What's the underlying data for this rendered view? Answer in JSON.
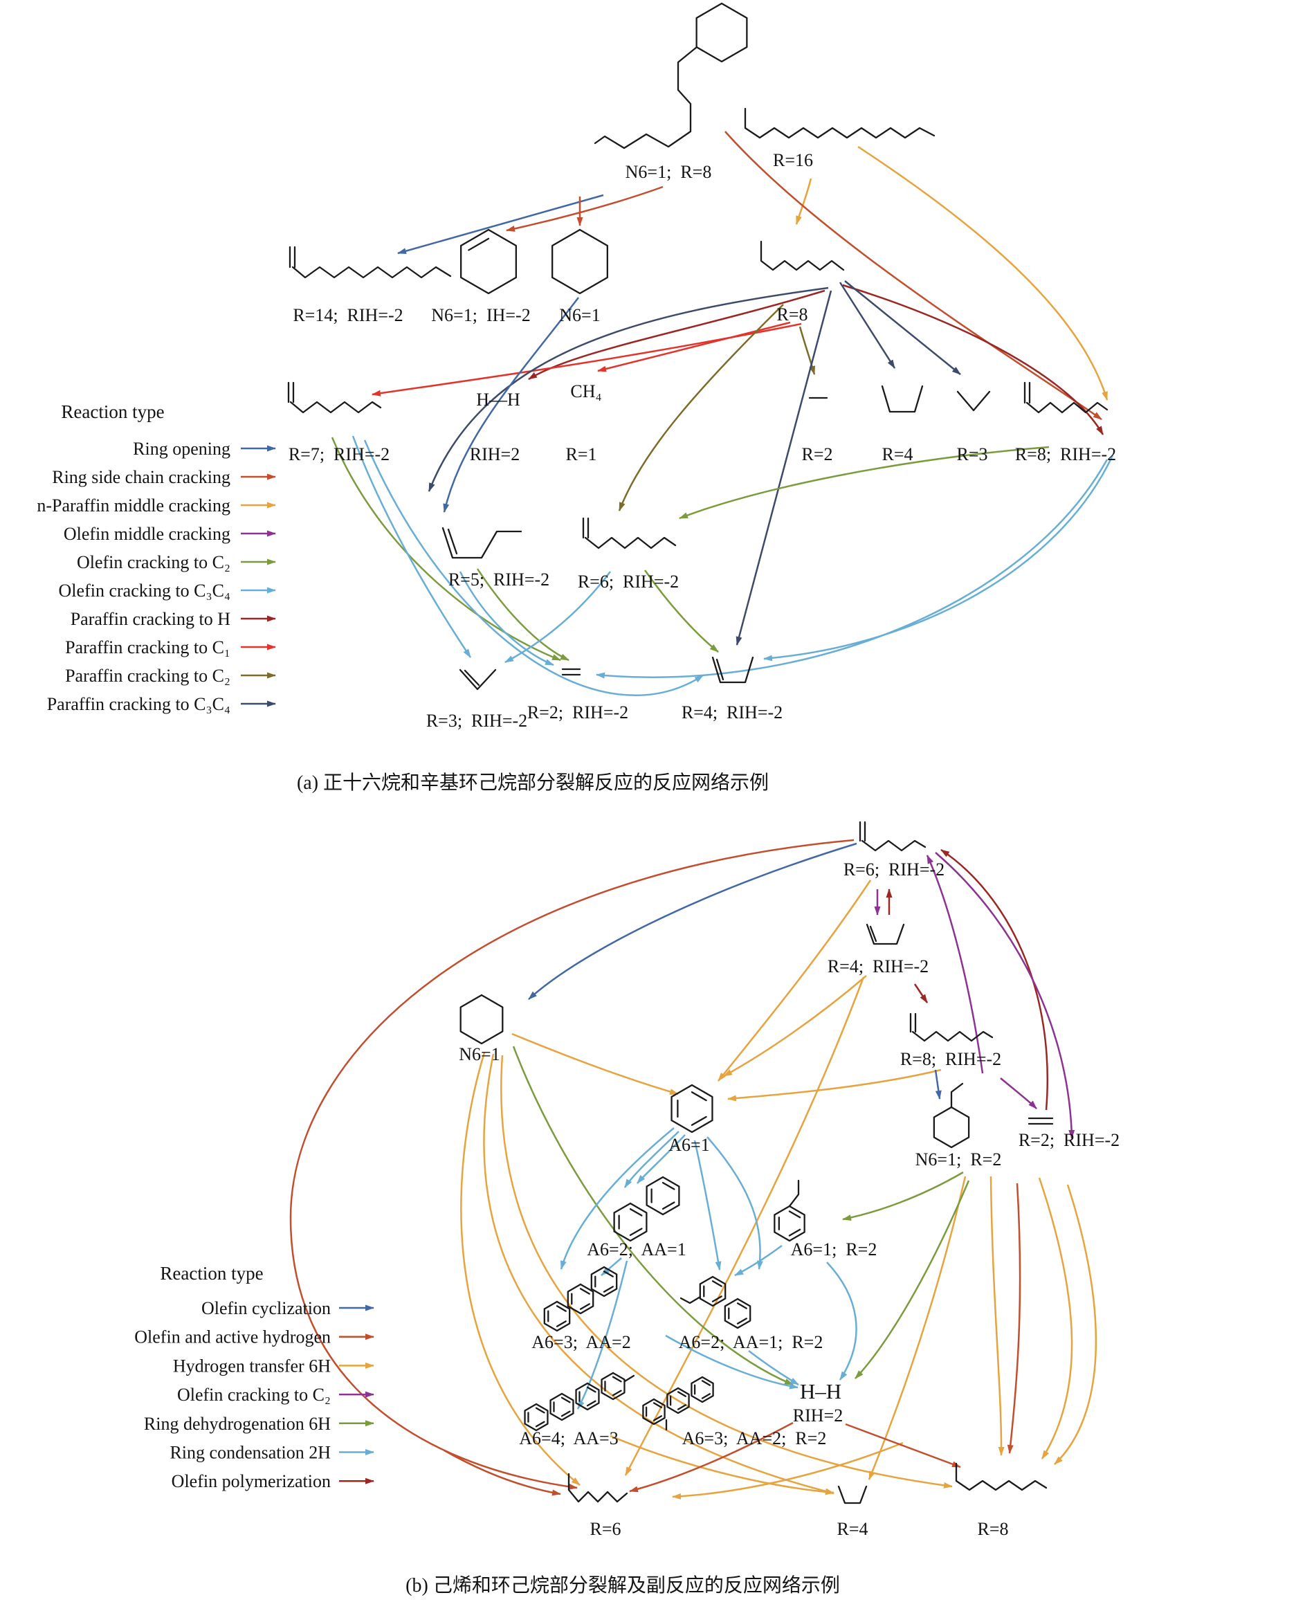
{
  "colors": {
    "blue": "#4168a5",
    "rust": "#c24e2d",
    "orange": "#e6a33e",
    "purple": "#8d3192",
    "green": "#7b9c3c",
    "lightblue": "#67aed6",
    "darkred": "#9b2724",
    "red": "#e2342c",
    "olive": "#7d6b29",
    "navy": "#3e4a6b",
    "ink": "#141414"
  },
  "panel_a": {
    "caption": "(a) 正十六烷和辛基环己烷部分裂解反应的反应网络示例",
    "legend_title": "Reaction type",
    "legend": [
      {
        "label": "Ring opening",
        "color": "blue"
      },
      {
        "label": "Ring side chain cracking",
        "color": "rust"
      },
      {
        "label": "n-Paraffin middle cracking",
        "color": "orange"
      },
      {
        "label": "Olefin middle cracking",
        "color": "purple"
      },
      {
        "label": "Olefin cracking to C₂",
        "color": "green"
      },
      {
        "label": "Olefin cracking to C₃C₄",
        "color": "lightblue"
      },
      {
        "label": "Paraffin cracking to H",
        "color": "darkred"
      },
      {
        "label": "Paraffin cracking to C₁",
        "color": "red"
      },
      {
        "label": "Paraffin cracking to C₂",
        "color": "olive"
      },
      {
        "label": "Paraffin cracking to C₃C₄",
        "color": "navy"
      }
    ],
    "species": {
      "octylcyclohexane": "N6=1;  R=8",
      "hexadecane": "R=16",
      "tetradecene": "R=14;  RIH=-2",
      "cyclohexene": "N6=1;  IH=-2",
      "cyclohexane": "N6=1",
      "octane": "R=8",
      "heptene": "R=7;  RIH=-2",
      "hydrogen_formula": "H—H",
      "hydrogen": "RIH=2",
      "methane_formula": "CH₄",
      "methane": "R=1",
      "ethane": "R=2",
      "butane": "R=4",
      "propane": "R=3",
      "octene": "R=8;  RIH=-2",
      "pentene": "R=5;  RIH=-2",
      "hexene": "R=6;  RIH=-2",
      "propene": "R=3;  RIH=-2",
      "ethylene": "R=2;  RIH=-2",
      "butene": "R=4;  RIH=-2"
    }
  },
  "panel_b": {
    "caption": "(b) 己烯和环己烷部分裂解及副反应的反应网络示例",
    "legend_title": "Reaction type",
    "legend": [
      {
        "label": "Olefin cyclization",
        "color": "blue"
      },
      {
        "label": "Olefin and active hydrogen",
        "color": "rust"
      },
      {
        "label": "Hydrogen transfer 6H",
        "color": "orange"
      },
      {
        "label": "Olefin cracking to C₂",
        "color": "purple"
      },
      {
        "label": "Ring dehydrogenation 6H",
        "color": "green"
      },
      {
        "label": "Ring condensation 2H",
        "color": "lightblue"
      },
      {
        "label": "Olefin polymerization",
        "color": "darkred"
      }
    ],
    "species": {
      "hexene": "R=6;  RIH=-2",
      "butene": "R=4;  RIH=-2",
      "octene": "R=8;  RIH=-2",
      "ethylcyclohexane": "N6=1;  R=2",
      "ethylene": "R=2;  RIH=-2",
      "cyclohexane": "N6=1",
      "benzene": "A6=1",
      "biphenyl": "A6=2;  AA=1",
      "ethylbenzene": "A6=1;  R=2",
      "terphenyl": "A6=3;  AA=2",
      "ethylbiphenyl": "A6=2;  AA=1;  R=2",
      "quaterphenyl": "A6=4;  AA=3",
      "ethylterphenyl": "A6=3;  AA=2;  R=2",
      "hydrogen_formula": "H–H",
      "hydrogen": "RIH=2",
      "hexane": "R=6",
      "butane": "R=4",
      "octane": "R=8"
    }
  }
}
